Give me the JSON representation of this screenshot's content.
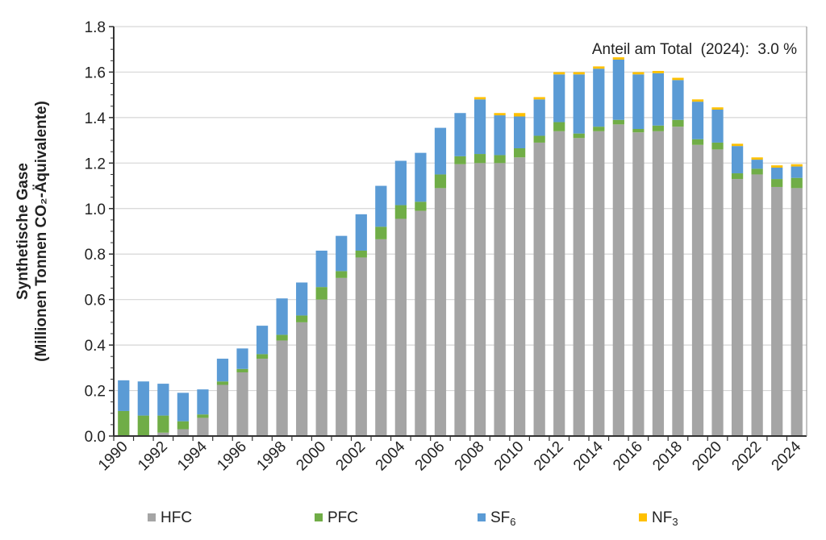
{
  "chart_data": {
    "type": "bar",
    "stacked": true,
    "title": "",
    "annotation": "Anteil am Total  (2024):  3.0 %",
    "ylabel_line1": "Synthetische Gase",
    "ylabel_line2": "(Millionen Tonnen CO₂-Äquivalente)",
    "xlabel": "",
    "ylim": [
      0,
      1.8
    ],
    "yticks": [
      "0.0",
      "0.2",
      "0.4",
      "0.6",
      "0.8",
      "1.0",
      "1.2",
      "1.4",
      "1.6",
      "1.8"
    ],
    "grid": true,
    "legend_position": "bottom",
    "categories": [
      1990,
      1991,
      1992,
      1993,
      1994,
      1995,
      1996,
      1997,
      1998,
      1999,
      2000,
      2001,
      2002,
      2003,
      2004,
      2005,
      2006,
      2007,
      2008,
      2009,
      2010,
      2011,
      2012,
      2013,
      2014,
      2015,
      2016,
      2017,
      2018,
      2019,
      2020,
      2021,
      2022,
      2023,
      2024
    ],
    "xtick_labels": [
      "1990",
      "1992",
      "1994",
      "1996",
      "1998",
      "2000",
      "2002",
      "2004",
      "2006",
      "2008",
      "2010",
      "2012",
      "2014",
      "2016",
      "2018",
      "2020",
      "2022",
      "2024"
    ],
    "series": [
      {
        "name": "HFC",
        "color": "#a5a5a5",
        "values": [
          0.0,
          0.0,
          0.015,
          0.03,
          0.08,
          0.225,
          0.28,
          0.34,
          0.42,
          0.5,
          0.6,
          0.695,
          0.785,
          0.865,
          0.955,
          0.99,
          1.09,
          1.195,
          1.2,
          1.2,
          1.225,
          1.29,
          1.34,
          1.31,
          1.34,
          1.37,
          1.335,
          1.34,
          1.36,
          1.28,
          1.26,
          1.13,
          1.15,
          1.095,
          1.09
        ]
      },
      {
        "name": "PFC",
        "color": "#70ad47",
        "values": [
          0.11,
          0.09,
          0.075,
          0.035,
          0.015,
          0.015,
          0.015,
          0.02,
          0.025,
          0.03,
          0.055,
          0.03,
          0.03,
          0.055,
          0.06,
          0.04,
          0.06,
          0.035,
          0.04,
          0.035,
          0.04,
          0.03,
          0.04,
          0.02,
          0.02,
          0.02,
          0.015,
          0.025,
          0.03,
          0.025,
          0.03,
          0.025,
          0.025,
          0.035,
          0.045
        ]
      },
      {
        "name": "SF6",
        "label_main": "SF",
        "label_sub": "6",
        "color": "#5b9bd5",
        "values": [
          0.135,
          0.15,
          0.14,
          0.125,
          0.11,
          0.1,
          0.09,
          0.125,
          0.16,
          0.145,
          0.16,
          0.155,
          0.16,
          0.18,
          0.195,
          0.215,
          0.205,
          0.19,
          0.24,
          0.175,
          0.14,
          0.16,
          0.21,
          0.26,
          0.255,
          0.265,
          0.24,
          0.23,
          0.175,
          0.165,
          0.145,
          0.12,
          0.04,
          0.05,
          0.05
        ]
      },
      {
        "name": "NF3",
        "label_main": "NF",
        "label_sub": "3",
        "color": "#ffc000",
        "values": [
          0,
          0,
          0,
          0,
          0,
          0,
          0,
          0,
          0,
          0,
          0,
          0,
          0,
          0,
          0,
          0,
          0,
          0,
          0.01,
          0.01,
          0.015,
          0.01,
          0.01,
          0.01,
          0.01,
          0.01,
          0.01,
          0.01,
          0.01,
          0.01,
          0.01,
          0.01,
          0.01,
          0.01,
          0.01
        ]
      }
    ]
  }
}
